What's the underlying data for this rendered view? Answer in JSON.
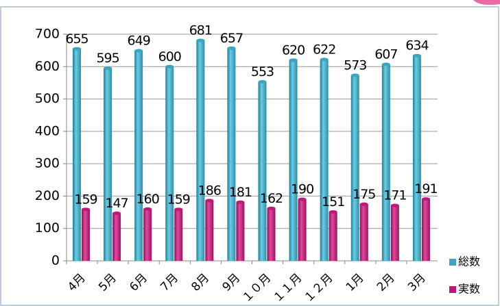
{
  "chart_data": {
    "type": "bar",
    "categories": [
      "4月",
      "5月",
      "6月",
      "7月",
      "8月",
      "9月",
      "１０月",
      "１１月",
      "１２月",
      "1月",
      "2月",
      "3月"
    ],
    "series": [
      {
        "name": "総数",
        "color": "#3aa6c2",
        "values": [
          655,
          595,
          649,
          600,
          681,
          657,
          553,
          620,
          622,
          573,
          607,
          634
        ]
      },
      {
        "name": "実数",
        "color": "#c0187a",
        "values": [
          159,
          147,
          160,
          159,
          186,
          181,
          162,
          190,
          151,
          175,
          171,
          191
        ]
      }
    ],
    "ylim": [
      0,
      700
    ],
    "yticks": [
      0,
      100,
      200,
      300,
      400,
      500,
      600,
      700
    ],
    "grid": true,
    "legend": "right"
  }
}
